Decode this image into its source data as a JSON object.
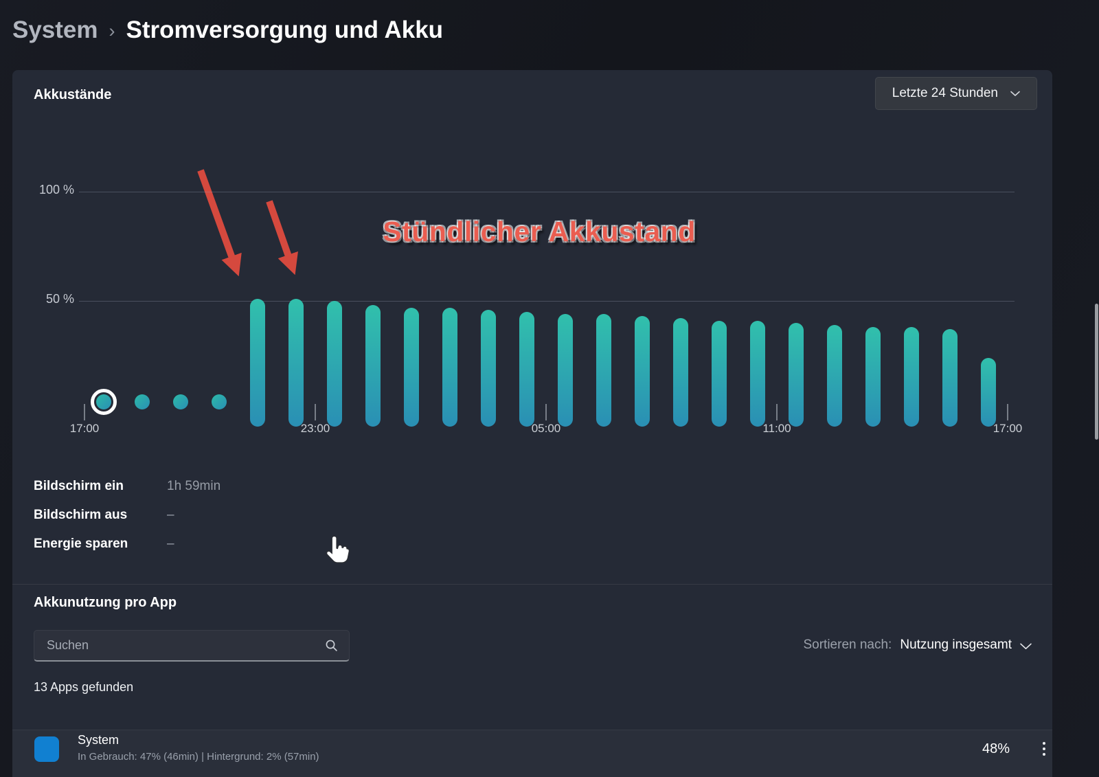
{
  "breadcrumb": {
    "parent": "System",
    "separator": "›",
    "title": "Stromversorgung und Akku"
  },
  "battery": {
    "section_title": "Akkustände",
    "range_label": "Letzte 24 Stunden",
    "annotation": "Stündlicher Akkustand",
    "stats": [
      {
        "label": "Bildschirm ein",
        "value": "1h 59min"
      },
      {
        "label": "Bildschirm aus",
        "value": "–"
      },
      {
        "label": "Energie sparen",
        "value": "–"
      }
    ]
  },
  "chart_data": {
    "type": "bar",
    "title": "Akkustände",
    "unit": "%",
    "ylim": [
      0,
      100
    ],
    "ytick_values": [
      100,
      50
    ],
    "ytick_labels": [
      "100 %",
      "50 %"
    ],
    "x_tick_labels": [
      "17:00",
      "23:00",
      "05:00",
      "11:00",
      "17:00"
    ],
    "legend": "none",
    "grid": "horizontal",
    "points": [
      {
        "display": "dot",
        "value": 3,
        "highlighted": true
      },
      {
        "display": "dot",
        "value": 3
      },
      {
        "display": "dot",
        "value": 3
      },
      {
        "display": "dot",
        "value": 3
      },
      {
        "display": "bar",
        "value": 51
      },
      {
        "display": "bar",
        "value": 51
      },
      {
        "display": "bar",
        "value": 50
      },
      {
        "display": "bar",
        "value": 48
      },
      {
        "display": "bar",
        "value": 47
      },
      {
        "display": "bar",
        "value": 47
      },
      {
        "display": "bar",
        "value": 46
      },
      {
        "display": "bar",
        "value": 45
      },
      {
        "display": "bar",
        "value": 44
      },
      {
        "display": "bar",
        "value": 44
      },
      {
        "display": "bar",
        "value": 43
      },
      {
        "display": "bar",
        "value": 42
      },
      {
        "display": "bar",
        "value": 41
      },
      {
        "display": "bar",
        "value": 41
      },
      {
        "display": "bar",
        "value": 40
      },
      {
        "display": "bar",
        "value": 39
      },
      {
        "display": "bar",
        "value": 38
      },
      {
        "display": "bar",
        "value": 38
      },
      {
        "display": "bar",
        "value": 37
      },
      {
        "display": "bar",
        "value": 24
      }
    ]
  },
  "app_usage": {
    "section_title": "Akkunutzung pro App",
    "search_placeholder": "Suchen",
    "sort_prefix": "Sortieren nach:",
    "sort_value": "Nutzung insgesamt",
    "results_count": "13 Apps gefunden",
    "apps": [
      {
        "name": "System",
        "details": "In Gebrauch: 47% (46min) | Hintergrund: 2% (57min)",
        "percent": "48%"
      }
    ]
  },
  "icons": {
    "range_dropdown": "chevron-down-icon",
    "search": "search-icon",
    "sort": "chevron-down-icon",
    "app_row_menu": "more-options-icon",
    "pointer": "hand-cursor-icon"
  },
  "colors": {
    "accent_teal_top": "#31c0ac",
    "accent_teal_bottom": "#2a8fb4",
    "annotation_red": "#ea5d50",
    "app_icon_blue": "#1180d1",
    "card_background": "#252a36"
  }
}
